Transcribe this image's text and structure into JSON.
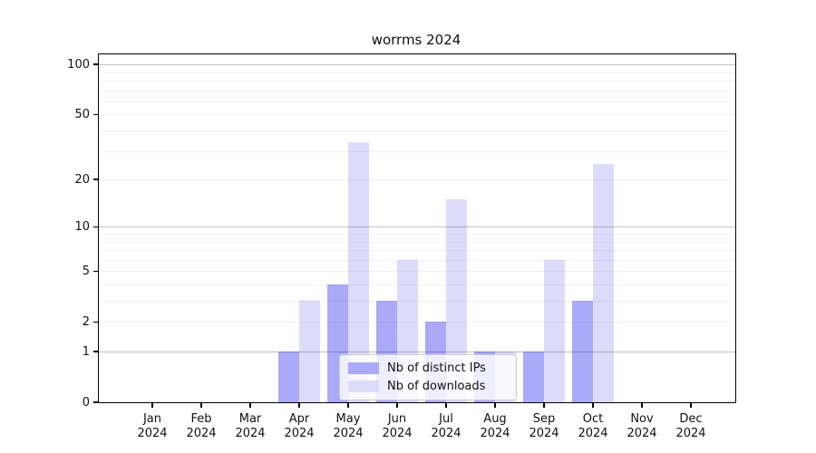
{
  "title": "worrms 2024",
  "colors": {
    "distinct_ips_bar": "#aaaaf8",
    "downloads_bar": "#dcdcfa",
    "grid_major": "#c2c2c2",
    "grid_minor": "#f0f0f0",
    "axis_line": "#000000",
    "legend_border": "#cccccc",
    "background": "#ffffff"
  },
  "legend": {
    "items": [
      {
        "label": "Nb of distinct IPs",
        "swatch_icon": "distinct-ips-swatch"
      },
      {
        "label": "Nb of downloads",
        "swatch_icon": "downloads-swatch"
      }
    ]
  },
  "y_axis": {
    "scale": "log1p",
    "tick_labels": [
      "0",
      "1",
      "2",
      "5",
      "10",
      "20",
      "50",
      "100"
    ],
    "tick_values": [
      0,
      1,
      2,
      5,
      10,
      20,
      50,
      100
    ],
    "major_gridline_values": [
      1,
      10,
      100
    ],
    "minor_gridline_values": [
      2,
      3,
      4,
      5,
      6,
      7,
      8,
      9,
      20,
      30,
      40,
      50,
      60,
      70,
      80,
      90
    ],
    "max": 115
  },
  "x_axis": {
    "categories": [
      {
        "month": "Jan",
        "year": "2024"
      },
      {
        "month": "Feb",
        "year": "2024"
      },
      {
        "month": "Mar",
        "year": "2024"
      },
      {
        "month": "Apr",
        "year": "2024"
      },
      {
        "month": "May",
        "year": "2024"
      },
      {
        "month": "Jun",
        "year": "2024"
      },
      {
        "month": "Jul",
        "year": "2024"
      },
      {
        "month": "Aug",
        "year": "2024"
      },
      {
        "month": "Sep",
        "year": "2024"
      },
      {
        "month": "Oct",
        "year": "2024"
      },
      {
        "month": "Nov",
        "year": "2024"
      },
      {
        "month": "Dec",
        "year": "2024"
      }
    ]
  },
  "chart_data": {
    "type": "bar",
    "title": "worrms 2024",
    "categories": [
      "Jan 2024",
      "Feb 2024",
      "Mar 2024",
      "Apr 2024",
      "May 2024",
      "Jun 2024",
      "Jul 2024",
      "Aug 2024",
      "Sep 2024",
      "Oct 2024",
      "Nov 2024",
      "Dec 2024"
    ],
    "series": [
      {
        "name": "Nb of distinct IPs",
        "color": "#aaaaf8",
        "values": [
          0,
          0,
          0,
          1,
          4,
          3,
          2,
          1,
          1,
          3,
          0,
          0
        ]
      },
      {
        "name": "Nb of downloads",
        "color": "#dcdcfa",
        "values": [
          0,
          0,
          0,
          3,
          34,
          6,
          15,
          1,
          6,
          25,
          0,
          0
        ]
      }
    ],
    "xlabel": "",
    "ylabel": "",
    "y_scale": "log1p",
    "y_ticks": [
      0,
      1,
      2,
      5,
      10,
      20,
      50,
      100
    ],
    "ylim": [
      0,
      115
    ],
    "grid": "horizontal",
    "legend_position": "lower-center-inside"
  }
}
